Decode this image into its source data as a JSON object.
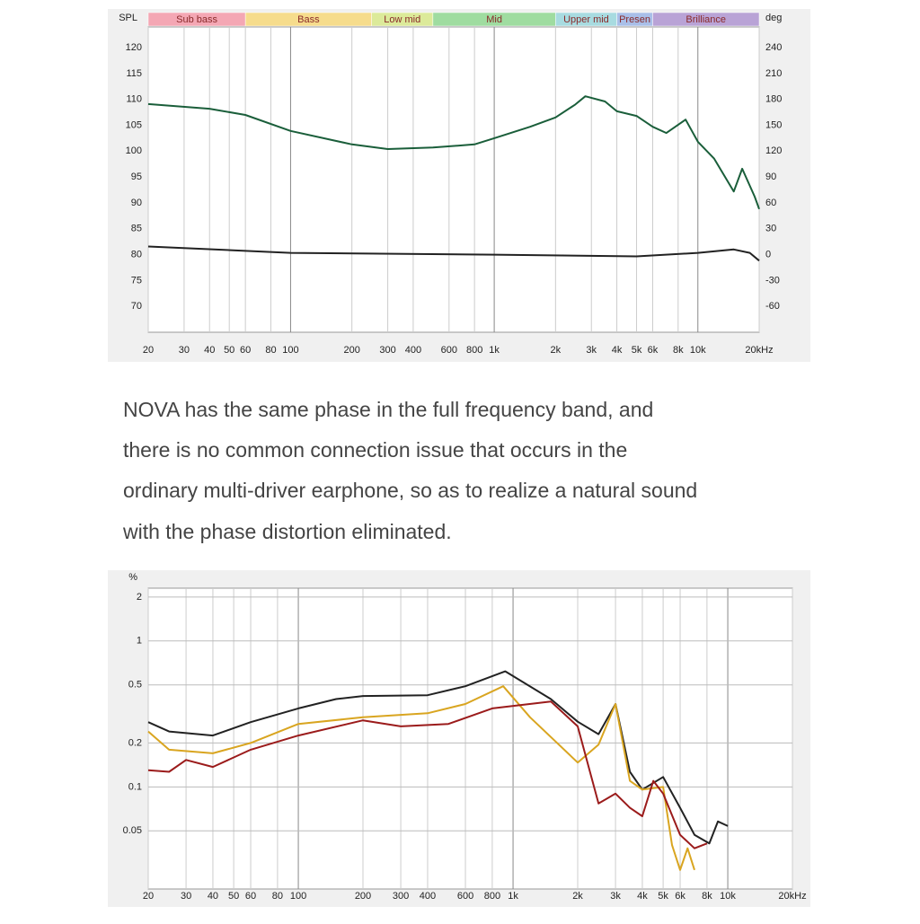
{
  "chart_data": [
    {
      "type": "line",
      "xlog": true,
      "grid": "x",
      "y_label": "SPL",
      "y2_label": "deg",
      "xlim": [
        20,
        20000
      ],
      "xticks": [
        20,
        30,
        40,
        50,
        60,
        80,
        100,
        200,
        300,
        400,
        600,
        800,
        {
          "value": 1000,
          "label": "1k"
        },
        {
          "value": 2000,
          "label": "2k"
        },
        {
          "value": 3000,
          "label": "3k"
        },
        {
          "value": 4000,
          "label": "4k"
        },
        {
          "value": 5000,
          "label": "5k"
        },
        {
          "value": 6000,
          "label": "6k"
        },
        {
          "value": 8000,
          "label": "8k"
        },
        {
          "value": 10000,
          "label": "10k"
        },
        {
          "value": 20000,
          "label": "20kHz"
        }
      ],
      "ylim": [
        65,
        124
      ],
      "yticks": [
        70,
        75,
        80,
        85,
        90,
        95,
        100,
        105,
        110,
        115,
        120
      ],
      "y2lim": [
        -90,
        264
      ],
      "y2ticks": [
        -60,
        -30,
        0,
        30,
        60,
        90,
        120,
        150,
        180,
        210,
        240
      ],
      "bands": [
        {
          "label": "Sub bass",
          "from": 20,
          "to": 60,
          "color": "#f4a7b4"
        },
        {
          "label": "Bass",
          "from": 60,
          "to": 250,
          "color": "#f6dc8c"
        },
        {
          "label": "Low mid",
          "from": 250,
          "to": 500,
          "color": "#dcea9a"
        },
        {
          "label": "Mid",
          "from": 500,
          "to": 2000,
          "color": "#9fdca0"
        },
        {
          "label": "Upper mid",
          "from": 2000,
          "to": 4000,
          "color": "#a8dbe0"
        },
        {
          "label": "Presen",
          "from": 4000,
          "to": 6000,
          "color": "#a9bfe8"
        },
        {
          "label": "Brilliance",
          "from": 6000,
          "to": 20000,
          "color": "#b9a3d6"
        }
      ],
      "series": [
        {
          "color": "#1a5e3a",
          "x": [
            20,
            40,
            60,
            100,
            200,
            300,
            500,
            800,
            1000,
            1500,
            2000,
            2500,
            2800,
            3500,
            4000,
            5000,
            6000,
            7000,
            8700,
            10000,
            12000,
            15000,
            16500,
            19000,
            20000
          ],
          "values": [
            109.1,
            108.2,
            107,
            103.9,
            101.3,
            100.4,
            100.7,
            101.3,
            102.5,
            104.7,
            106.5,
            109,
            110.6,
            109.6,
            107.7,
            106.8,
            104.7,
            103.5,
            106.1,
            101.8,
            98.6,
            92.2,
            96.6,
            91.2,
            88.8
          ]
        },
        {
          "color": "#222222",
          "axis": "y2",
          "x": [
            20,
            100,
            1000,
            5000,
            10000,
            15000,
            18000,
            20000
          ],
          "values": [
            9.4,
            2,
            0,
            -2,
            2,
            6,
            2,
            -7
          ]
        }
      ]
    },
    {
      "type": "line",
      "xlog": true,
      "ylog": true,
      "grid": "both",
      "y_label": "%",
      "xlim": [
        20,
        20000
      ],
      "xticks": [
        20,
        30,
        40,
        50,
        60,
        80,
        100,
        200,
        300,
        400,
        600,
        800,
        {
          "value": 1000,
          "label": "1k"
        },
        {
          "value": 2000,
          "label": "2k"
        },
        {
          "value": 3000,
          "label": "3k"
        },
        {
          "value": 4000,
          "label": "4k"
        },
        {
          "value": 5000,
          "label": "5k"
        },
        {
          "value": 6000,
          "label": "6k"
        },
        {
          "value": 8000,
          "label": "8k"
        },
        {
          "value": 10000,
          "label": "10k"
        },
        {
          "value": 20000,
          "label": "20kHz"
        }
      ],
      "ylim": [
        0.02,
        2.3
      ],
      "yticks": [
        0.05,
        0.1,
        0.2,
        0.5,
        1,
        2
      ],
      "series": [
        {
          "color": "#222222",
          "x": [
            20,
            25,
            40,
            60,
            100,
            150,
            200,
            400,
            600,
            920,
            1500,
            2000,
            2500,
            3000,
            3500,
            4000,
            5000,
            6000,
            7000,
            8200,
            9000,
            10000
          ],
          "values": [
            0.278,
            0.24,
            0.225,
            0.278,
            0.345,
            0.4,
            0.42,
            0.425,
            0.49,
            0.62,
            0.4,
            0.28,
            0.23,
            0.37,
            0.127,
            0.096,
            0.117,
            0.072,
            0.047,
            0.041,
            0.058,
            0.054
          ]
        },
        {
          "color": "#d9a520",
          "x": [
            20,
            25,
            40,
            60,
            100,
            200,
            400,
            600,
            900,
            1200,
            2000,
            2500,
            3000,
            3500,
            4000,
            5000,
            5500,
            6000,
            6500,
            7000
          ],
          "values": [
            0.24,
            0.18,
            0.17,
            0.2,
            0.27,
            0.3,
            0.32,
            0.37,
            0.49,
            0.3,
            0.147,
            0.195,
            0.37,
            0.11,
            0.096,
            0.1,
            0.04,
            0.027,
            0.038,
            0.027
          ]
        },
        {
          "color": "#9b1b1b",
          "x": [
            20,
            25,
            30,
            40,
            60,
            100,
            200,
            300,
            500,
            800,
            1500,
            2000,
            2500,
            3000,
            3500,
            4000,
            4500,
            5000,
            6000,
            7000,
            8000
          ],
          "values": [
            0.13,
            0.127,
            0.153,
            0.137,
            0.18,
            0.225,
            0.286,
            0.26,
            0.27,
            0.345,
            0.385,
            0.26,
            0.077,
            0.09,
            0.072,
            0.063,
            0.11,
            0.09,
            0.047,
            0.038,
            0.041
          ]
        }
      ]
    }
  ],
  "paragraph": {
    "lines": [
      "NOVA has the same phase in the full frequency band, and",
      "there is no common connection issue that occurs in the",
      "ordinary multi-driver earphone, so as to realize a natural sound",
      "with the phase distortion eliminated."
    ]
  }
}
